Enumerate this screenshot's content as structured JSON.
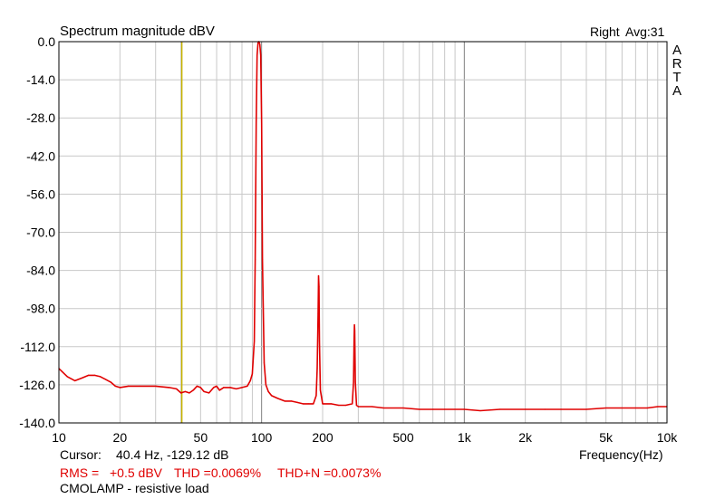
{
  "chart_data": {
    "type": "line",
    "title": "Spectrum magnitude dBV",
    "channel_label": "Right",
    "avg_label": "Avg:31",
    "brand_letters": [
      "A",
      "R",
      "T",
      "A"
    ],
    "xlabel": "Frequency(Hz)",
    "ylabel": "",
    "x_scale": "log",
    "xlim": [
      10,
      10000
    ],
    "ylim": [
      -140,
      0
    ],
    "grid": true,
    "y_ticks": [
      "0.0",
      "-14.0",
      "-28.0",
      "-42.0",
      "-56.0",
      "-70.0",
      "-84.0",
      "-98.0",
      "-112.0",
      "-126.0",
      "-140.0"
    ],
    "y_tick_values": [
      0,
      -14,
      -28,
      -42,
      -56,
      -70,
      -84,
      -98,
      -112,
      -126,
      -140
    ],
    "x_ticks": [
      "10",
      "20",
      "50",
      "100",
      "200",
      "500",
      "1k",
      "2k",
      "5k",
      "10k"
    ],
    "x_tick_values": [
      10,
      20,
      50,
      100,
      200,
      500,
      1000,
      2000,
      5000,
      10000
    ],
    "series": [
      {
        "color": "#e00000",
        "points": [
          [
            10,
            -120
          ],
          [
            11,
            -123
          ],
          [
            12,
            -124.5
          ],
          [
            13,
            -123.5
          ],
          [
            14,
            -122.5
          ],
          [
            15,
            -122.5
          ],
          [
            16,
            -123
          ],
          [
            17,
            -124
          ],
          [
            18,
            -125
          ],
          [
            19,
            -126.5
          ],
          [
            20,
            -127
          ],
          [
            22,
            -126.5
          ],
          [
            25,
            -126.5
          ],
          [
            30,
            -126.5
          ],
          [
            35,
            -127
          ],
          [
            38,
            -127.5
          ],
          [
            40,
            -129
          ],
          [
            42,
            -128.5
          ],
          [
            44,
            -129
          ],
          [
            46,
            -128
          ],
          [
            48,
            -126.5
          ],
          [
            50,
            -127
          ],
          [
            52,
            -128.5
          ],
          [
            55,
            -129
          ],
          [
            58,
            -127
          ],
          [
            60,
            -126.5
          ],
          [
            62,
            -128
          ],
          [
            65,
            -127
          ],
          [
            70,
            -127
          ],
          [
            75,
            -127.5
          ],
          [
            80,
            -127
          ],
          [
            85,
            -126.5
          ],
          [
            88,
            -124.5
          ],
          [
            90,
            -122
          ],
          [
            92,
            -110
          ],
          [
            93,
            -80
          ],
          [
            94,
            -30
          ],
          [
            95,
            -5
          ],
          [
            96,
            -0.5
          ],
          [
            97,
            0
          ],
          [
            98,
            -1
          ],
          [
            99,
            -5
          ],
          [
            100,
            -30
          ],
          [
            101,
            -80
          ],
          [
            103,
            -118
          ],
          [
            105,
            -126
          ],
          [
            108,
            -128.5
          ],
          [
            112,
            -130
          ],
          [
            120,
            -131
          ],
          [
            130,
            -132
          ],
          [
            140,
            -132
          ],
          [
            150,
            -132.5
          ],
          [
            160,
            -133
          ],
          [
            170,
            -133
          ],
          [
            180,
            -133
          ],
          [
            186,
            -130
          ],
          [
            188,
            -120
          ],
          [
            190,
            -100
          ],
          [
            191,
            -86
          ],
          [
            192,
            -90
          ],
          [
            193,
            -110
          ],
          [
            195,
            -128
          ],
          [
            200,
            -133
          ],
          [
            220,
            -133
          ],
          [
            240,
            -133.5
          ],
          [
            260,
            -133.5
          ],
          [
            280,
            -133
          ],
          [
            284,
            -125
          ],
          [
            286,
            -110
          ],
          [
            287,
            -104
          ],
          [
            288,
            -106
          ],
          [
            290,
            -125
          ],
          [
            294,
            -133.5
          ],
          [
            300,
            -134
          ],
          [
            350,
            -134
          ],
          [
            400,
            -134.5
          ],
          [
            500,
            -134.5
          ],
          [
            600,
            -135
          ],
          [
            700,
            -135
          ],
          [
            800,
            -135
          ],
          [
            1000,
            -135
          ],
          [
            1200,
            -135.5
          ],
          [
            1500,
            -135
          ],
          [
            2000,
            -135
          ],
          [
            2500,
            -135
          ],
          [
            3000,
            -135
          ],
          [
            4000,
            -135
          ],
          [
            5000,
            -134.5
          ],
          [
            6000,
            -134.5
          ],
          [
            7000,
            -134.5
          ],
          [
            8000,
            -134.5
          ],
          [
            9000,
            -134
          ],
          [
            10000,
            -134
          ]
        ]
      }
    ],
    "cursor_freq": 40.4
  },
  "cursor_label": "Cursor:",
  "cursor_value": "40.4 Hz, -129.12 dB",
  "rms_label": "RMS =",
  "rms_value": "+0.5 dBV",
  "thd_text": "THD =0.0069%",
  "thdn_text": "THD+N =0.0073%",
  "footer_note": "CMOLAMP - resistive  load"
}
